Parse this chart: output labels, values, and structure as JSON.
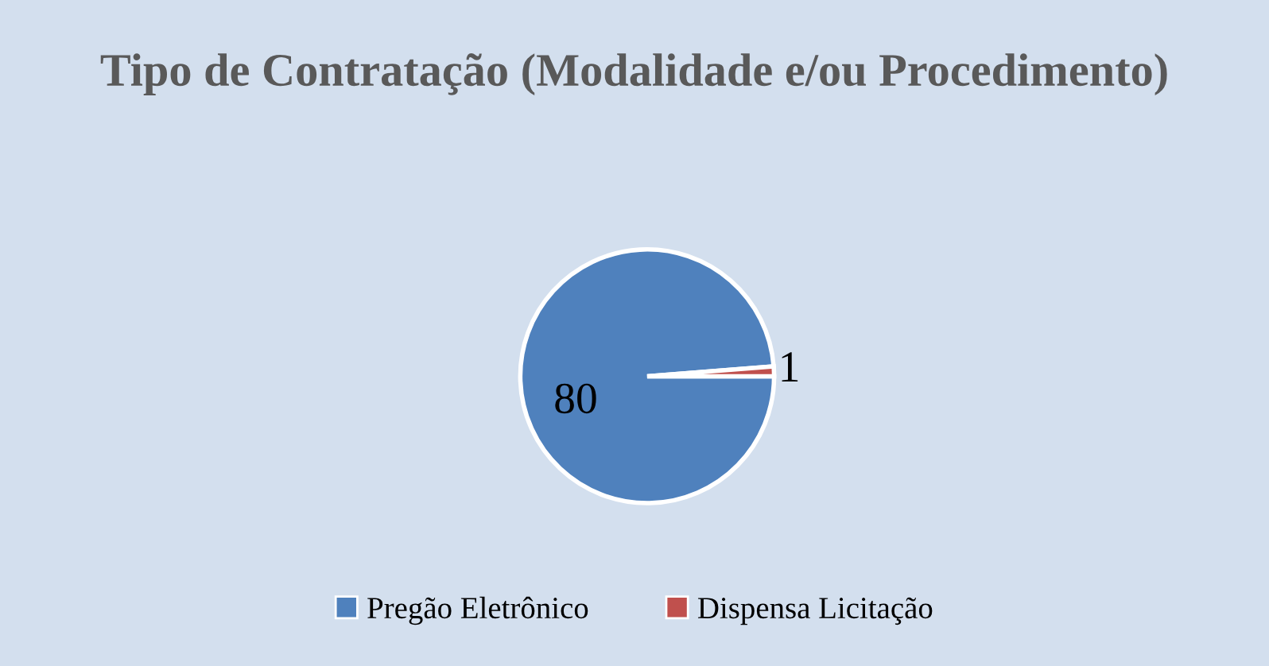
{
  "chart_data": {
    "type": "pie",
    "title": "Tipo de Contratação (Modalidade e/ou Procedimento)",
    "categories": [
      "Pregão Eletrônico",
      "Dispensa Licitação"
    ],
    "values": [
      80,
      1
    ],
    "colors": [
      "#4f81bd",
      "#c0504d"
    ],
    "data_labels": true,
    "legend": "bottom"
  }
}
